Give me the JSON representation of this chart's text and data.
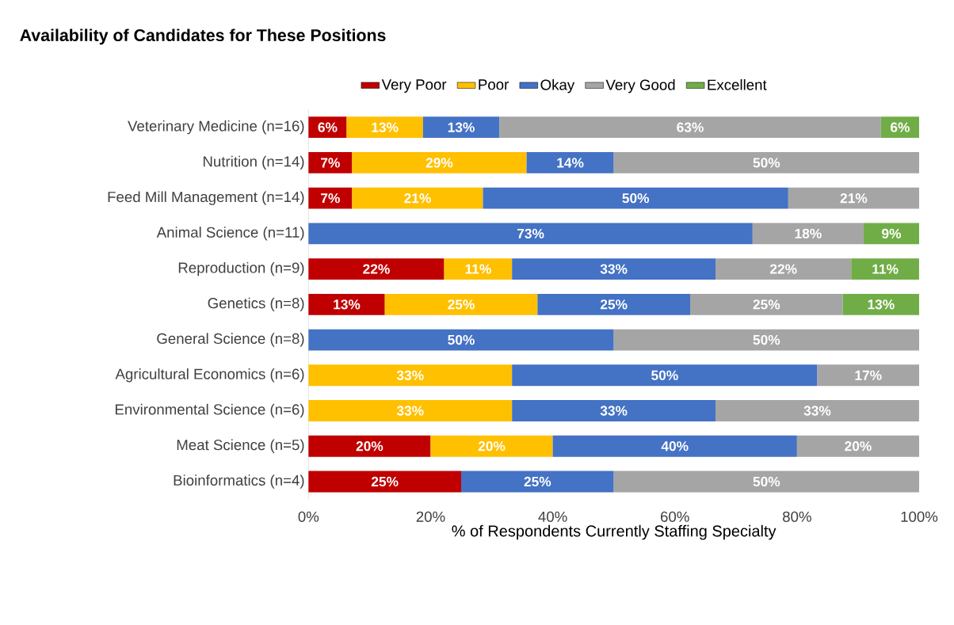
{
  "chart_data": {
    "type": "bar",
    "orientation": "horizontal",
    "stacked": true,
    "title": "Availability of Candidates for These Positions",
    "xlabel": "% of Respondents Currently Staffing Specialty",
    "categories": [
      "Veterinary Medicine (n=16)",
      "Nutrition (n=14)",
      "Feed Mill Management (n=14)",
      "Animal Science (n=11)",
      "Reproduction (n=9)",
      "Genetics (n=8)",
      "General Science (n=8)",
      "Agricultural Economics (n=6)",
      "Environmental Science (n=6)",
      "Meat Science (n=5)",
      "Bioinformatics (n=4)"
    ],
    "series": [
      {
        "name": "Very Poor",
        "color": "#c00000",
        "values": [
          6.25,
          7.14,
          7.14,
          null,
          22.22,
          12.5,
          null,
          null,
          null,
          20,
          25
        ],
        "value_labels": [
          "6%",
          "7%",
          "7%",
          null,
          "22%",
          "13%",
          null,
          null,
          null,
          "20%",
          "25%"
        ]
      },
      {
        "name": "Poor",
        "color": "#ffc000",
        "values": [
          12.5,
          28.57,
          21.43,
          null,
          11.11,
          25,
          null,
          33.33,
          33.33,
          20,
          null
        ],
        "value_labels": [
          "13%",
          "29%",
          "21%",
          null,
          "11%",
          "25%",
          null,
          "33%",
          "33%",
          "20%",
          null
        ]
      },
      {
        "name": "Okay",
        "color": "#4472c4",
        "values": [
          12.5,
          14.29,
          50,
          72.73,
          33.33,
          25,
          50,
          50,
          33.33,
          40,
          25
        ],
        "value_labels": [
          "13%",
          "14%",
          "50%",
          "73%",
          "33%",
          "25%",
          "50%",
          "50%",
          "33%",
          "40%",
          "25%"
        ]
      },
      {
        "name": "Very Good",
        "color": "#a5a5a5",
        "values": [
          62.5,
          50,
          21.43,
          18.18,
          22.22,
          25,
          50,
          16.67,
          33.33,
          20,
          50
        ],
        "value_labels": [
          "63%",
          "50%",
          "21%",
          "18%",
          "22%",
          "25%",
          "50%",
          "17%",
          "33%",
          "20%",
          "50%"
        ]
      },
      {
        "name": "Excellent",
        "color": "#70ad47",
        "values": [
          6.25,
          null,
          null,
          9.09,
          11.11,
          12.5,
          null,
          null,
          null,
          null,
          null
        ],
        "value_labels": [
          "6%",
          null,
          null,
          "9%",
          "11%",
          "13%",
          null,
          null,
          null,
          null,
          null
        ]
      }
    ],
    "xlim": [
      0,
      100
    ],
    "xticks": [
      {
        "value": 0,
        "label": "0%"
      },
      {
        "value": 20,
        "label": "20%"
      },
      {
        "value": 40,
        "label": "40%"
      },
      {
        "value": 60,
        "label": "60%"
      },
      {
        "value": 80,
        "label": "80%"
      },
      {
        "value": 100,
        "label": "100%"
      }
    ],
    "legend": "top"
  }
}
